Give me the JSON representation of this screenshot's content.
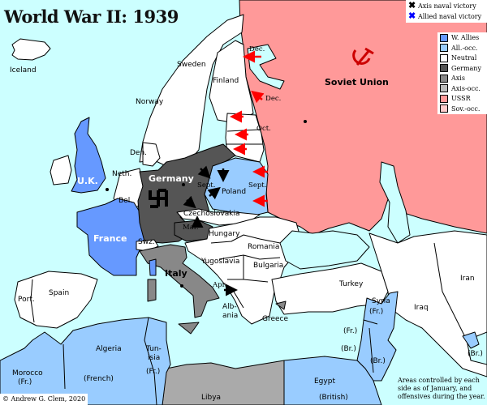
{
  "title": "World War II: 1939",
  "naval_legend": [
    {
      "label": "Axis naval victory",
      "color": "#000000",
      "icon": "x-mark-icon"
    },
    {
      "label": "Allied naval victory",
      "color": "#0000ff",
      "icon": "x-mark-icon"
    }
  ],
  "legend": [
    {
      "label": "W. Allies",
      "color": "#6699ff"
    },
    {
      "label": "All.-occ.",
      "color": "#99ccff"
    },
    {
      "label": "Neutral",
      "color": "#ffffff"
    },
    {
      "label": "Germany",
      "color": "#555555"
    },
    {
      "label": "Axis",
      "color": "#888888"
    },
    {
      "label": "Axis-occ.",
      "color": "#bbbbbb"
    },
    {
      "label": "USSR",
      "color": "#ff9999"
    },
    {
      "label": "Sov.-occ.",
      "color": "#ffcccc"
    }
  ],
  "colors": {
    "sea": "#ccffff",
    "soviet_arrow": "#ff0000",
    "axis_arrow": "#000000"
  },
  "labels": {
    "iceland": "Iceland",
    "sweden": "Sweden",
    "norway": "Norway",
    "finland": "Finland",
    "den": "Den.",
    "uk": "U.K.",
    "neth": "Neth.",
    "bel": "Bel.",
    "france": "France",
    "germany": "Germany",
    "poland": "Poland",
    "czechoslovakia": "Czechoslovakia",
    "mar": "Mar.",
    "hungary": "Hungary",
    "swz": "Swz.",
    "italy": "Italy",
    "yugoslavia": "Yugoslavia",
    "romania": "Romania",
    "bulgaria": "Bulgaria",
    "albania_1": "Alb-",
    "albania_2": "ania",
    "greece": "Greece",
    "turkey": "Turkey",
    "soviet_union": "Soviet Union",
    "spain": "Spain",
    "port": "Port.",
    "syria": "Syria",
    "syria_fr": "(Fr.)",
    "lebanon_fr": "(Fr.)",
    "palestine_br": "(Br.)",
    "transjordan_br": "(Br.)",
    "iraq": "Iraq",
    "kuwait_br": "(Br.)",
    "iran": "Iran",
    "algeria": "Algeria",
    "algeria_fr": "(French)",
    "tunisia_1": "Tun-",
    "tunisia_2": "isia",
    "tunisia_fr": "(Fr.)",
    "morocco": "Morocco",
    "morocco_fr": "(Fr.)",
    "libya": "Libya",
    "egypt": "Egypt",
    "egypt_br": "(British)"
  },
  "offensives": {
    "dec_1": "Dec.",
    "dec_2": "Dec.",
    "oct": "Oct.",
    "sept_w": "Sept.",
    "sept_e": "Sept.",
    "apr": "Apr."
  },
  "copyright": "© Andrew G. Clem, 2020",
  "note": "Areas controlled by each side as of January, and offensives during the year."
}
